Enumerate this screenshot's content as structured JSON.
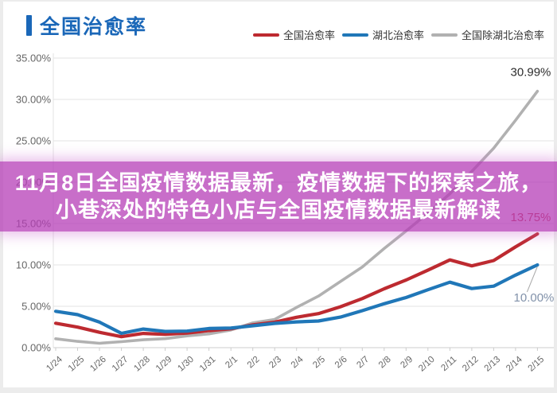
{
  "page": {
    "outer_bg": "#ececec",
    "card_bg": "#ffffff"
  },
  "header": {
    "title": "全国治愈率",
    "title_color": "#1a67b8",
    "accent_color": "#1a67b8"
  },
  "legend": [
    {
      "label": "全国治愈率",
      "color": "#bd2a30"
    },
    {
      "label": "湖北治愈率",
      "color": "#2077b8"
    },
    {
      "label": "全国除湖北治愈率",
      "color": "#b1b1b1"
    }
  ],
  "overlay_banner": {
    "line1": "11月8日全国疫情数据最新，疫情数据下的探索之旅，",
    "line2": "小巷深处的特色小店与全国疫情数据最新解读",
    "bg_rgba": "rgba(181,61,183,0.75)",
    "text_color": "#ffffff"
  },
  "chart_data": {
    "type": "line",
    "title": "全国治愈率",
    "x": [
      "1/24",
      "1/25",
      "1/26",
      "1/27",
      "1/28",
      "1/29",
      "1/30",
      "1/31",
      "2/1",
      "2/2",
      "2/3",
      "2/4",
      "2/5",
      "2/6",
      "2/7",
      "2/8",
      "2/9",
      "2/10",
      "2/11",
      "2/12",
      "2/13",
      "2/14",
      "2/15"
    ],
    "series": [
      {
        "name": "全国治愈率",
        "color": "#bd2a30",
        "values": [
          2.95,
          2.48,
          1.86,
          1.33,
          1.72,
          1.61,
          1.76,
          2.06,
          2.28,
          2.76,
          3.09,
          3.67,
          4.12,
          4.94,
          5.93,
          7.12,
          8.17,
          9.37,
          10.61,
          9.88,
          10.53,
          12.18,
          13.75
        ],
        "end_label": "13.75%",
        "end_label_color": "#c2363c"
      },
      {
        "name": "湖北治愈率",
        "color": "#2077b8",
        "values": [
          4.39,
          3.99,
          3.09,
          1.73,
          2.25,
          1.96,
          2.0,
          2.32,
          2.37,
          2.64,
          2.93,
          3.12,
          3.22,
          3.69,
          4.47,
          5.31,
          6.06,
          7.0,
          7.91,
          7.14,
          7.43,
          8.77,
          10.0
        ],
        "end_label": "10.00%",
        "end_label_color": "#8292aa"
      },
      {
        "name": "全国除湖北治愈率",
        "color": "#b1b1b1",
        "values": [
          1.08,
          0.76,
          0.53,
          0.72,
          0.95,
          1.09,
          1.42,
          1.66,
          2.13,
          2.99,
          3.41,
          4.87,
          6.23,
          7.99,
          9.75,
          11.98,
          14.1,
          16.26,
          18.61,
          21.3,
          24.11,
          27.48,
          30.99
        ],
        "end_label": "30.99%",
        "end_label_color": "#2d2d2d"
      }
    ],
    "ylim": [
      0,
      35
    ],
    "ytick_step": 5,
    "ytick_suffix": "%",
    "grid": true,
    "legend_position": "top-right",
    "axis_label_color": "#666666",
    "grid_color": "#e3e3e3",
    "axis_line_color": "#cccccc"
  }
}
